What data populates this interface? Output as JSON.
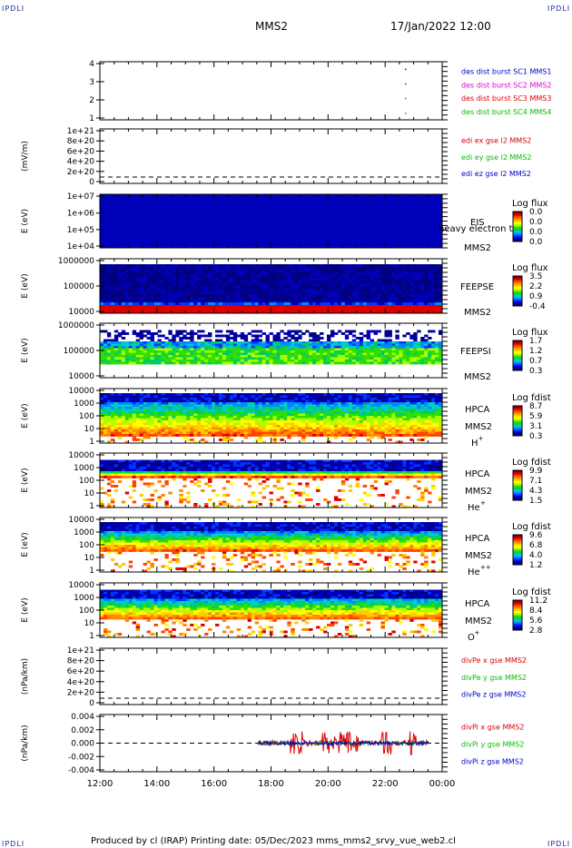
{
  "corner_label": "IPDLI",
  "header": {
    "spacecraft": "MMS2",
    "datetime": "17/Jan/2022 12:00"
  },
  "footer": {
    "text": "Produced by cl (IRAP)   Printing date: 05/Dec/2023   mms_mms2_srvy_vue_web2.cl"
  },
  "colors": {
    "blue": "#0000cc",
    "magenta": "#dd00dd",
    "red": "#dd0000",
    "green": "#00c000",
    "axis": "#000000"
  },
  "chart_data": {
    "type": "multi-panel",
    "x_ticks": [
      "12:00",
      "14:00",
      "16:00",
      "18:00",
      "20:00",
      "22:00",
      "00:00"
    ],
    "x_range": [
      "12:00",
      "00:00"
    ],
    "panels": [
      {
        "name": "burst",
        "ylabel": "",
        "yticks": [
          "4",
          "3",
          "2",
          "1"
        ],
        "series": [
          {
            "name": "des dist burst SC1 MMS1",
            "color": "#0000cc"
          },
          {
            "name": "des dist burst SC2 MMS2",
            "color": "#dd00dd"
          },
          {
            "name": "des dist burst SC3 MMS3",
            "color": "#dd0000"
          },
          {
            "name": "des dist burst SC4 MMS4",
            "color": "#00c000"
          }
        ]
      },
      {
        "name": "edi",
        "ylabel": "(mV/m)",
        "yticks": [
          "1e+21",
          "8e+20",
          "6e+20",
          "4e+20",
          "2e+20",
          "0"
        ],
        "series": [
          {
            "name": "edi ex gse l2 MMS2",
            "color": "#dd0000"
          },
          {
            "name": "edi ey gse l2 MMS2",
            "color": "#00c000"
          },
          {
            "name": "edi ez gse l2 MMS2",
            "color": "#0000cc"
          }
        ]
      },
      {
        "name": "eis",
        "ylabel": "E (eV)",
        "yticks": [
          "1e+07",
          "1e+06",
          "1e+05",
          "1e+04"
        ],
        "labels": [
          "EIS",
          "heavy electron to",
          "MMS2"
        ],
        "cbar_title": "Log flux",
        "cbar_ticks": [
          "0.0",
          "0.0",
          "0.0",
          "0.0"
        ]
      },
      {
        "name": "feepse",
        "ylabel": "E (eV)",
        "yticks": [
          "1000000",
          "100000",
          "10000"
        ],
        "labels": [
          "FEEPSE",
          "MMS2"
        ],
        "cbar_title": "Log flux",
        "cbar_ticks": [
          "3.5",
          "2.2",
          "0.9",
          "-0.4"
        ]
      },
      {
        "name": "feepsi",
        "ylabel": "E (eV)",
        "yticks": [
          "1000000",
          "100000",
          "10000"
        ],
        "labels": [
          "FEEPSI",
          "MMS2"
        ],
        "cbar_title": "Log flux",
        "cbar_ticks": [
          "1.7",
          "1.2",
          "0.7",
          "0.3"
        ]
      },
      {
        "name": "hpca-h",
        "ylabel": "E (eV)",
        "yticks": [
          "10000",
          "1000",
          "100",
          "10",
          "1"
        ],
        "labels": [
          "HPCA",
          "MMS2",
          "H",
          "+"
        ],
        "cbar_title": "Log fdist",
        "cbar_ticks": [
          "8.7",
          "5.9",
          "3.1",
          "0.3"
        ]
      },
      {
        "name": "hpca-he",
        "ylabel": "E (eV)",
        "yticks": [
          "10000",
          "1000",
          "100",
          "10",
          "1"
        ],
        "labels": [
          "HPCA",
          "MMS2",
          "He",
          "+"
        ],
        "cbar_title": "Log fdist",
        "cbar_ticks": [
          "9.9",
          "7.1",
          "4.3",
          "1.5"
        ]
      },
      {
        "name": "hpca-hepp",
        "ylabel": "E (eV)",
        "yticks": [
          "10000",
          "1000",
          "100",
          "10",
          "1"
        ],
        "labels": [
          "HPCA",
          "MMS2",
          "He",
          "++"
        ],
        "cbar_title": "Log fdist",
        "cbar_ticks": [
          "9.6",
          "6.8",
          "4.0",
          "1.2"
        ]
      },
      {
        "name": "hpca-o",
        "ylabel": "E (eV)",
        "yticks": [
          "10000",
          "1000",
          "100",
          "10",
          "1"
        ],
        "labels": [
          "HPCA",
          "MMS2",
          "O",
          "+"
        ],
        "cbar_title": "Log fdist",
        "cbar_ticks": [
          "11.2",
          "8.4",
          "5.6",
          "2.8"
        ]
      },
      {
        "name": "divpe",
        "ylabel": "(nPa/km)",
        "yticks": [
          "1e+21",
          "8e+20",
          "6e+20",
          "4e+20",
          "2e+20",
          "0"
        ],
        "series": [
          {
            "name": "divPe x gse MMS2",
            "color": "#dd0000"
          },
          {
            "name": "divPe y gse MMS2",
            "color": "#00c000"
          },
          {
            "name": "divPe z gse MMS2",
            "color": "#0000cc"
          }
        ]
      },
      {
        "name": "divpi",
        "ylabel": "(nPa/km)",
        "yticks": [
          "0.004",
          "0.002",
          "0.000",
          "-0.002",
          "-0.004"
        ],
        "ylim": [
          -0.005,
          0.005
        ],
        "series": [
          {
            "name": "divPi x gse MMS2",
            "color": "#dd0000"
          },
          {
            "name": "divPi y gse MMS2",
            "color": "#00c000"
          },
          {
            "name": "divPi z gse MMS2",
            "color": "#0000cc"
          }
        ]
      }
    ]
  }
}
